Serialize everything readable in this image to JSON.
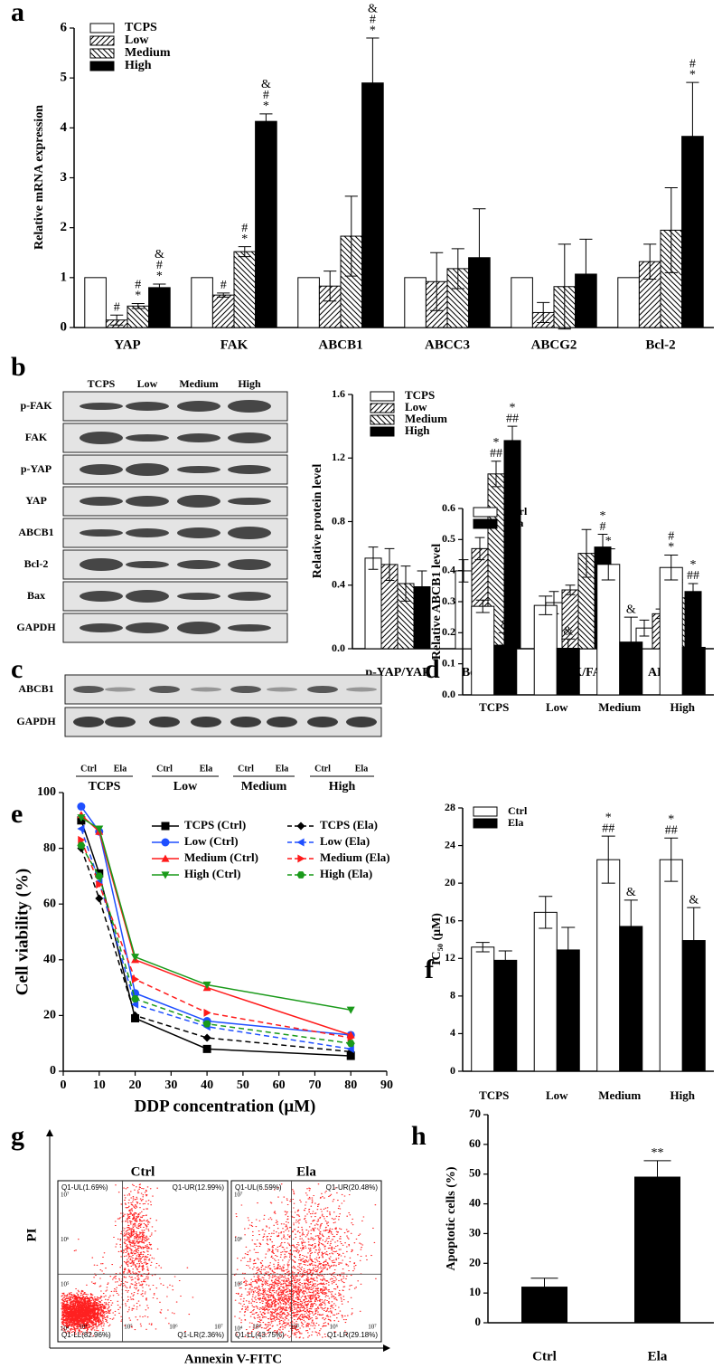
{
  "chart_data": [
    {
      "type": "bar",
      "panel": "a",
      "ylabel": "Relative mRNA expression",
      "categories": [
        "YAP",
        "FAK",
        "ABCB1",
        "ABCC3",
        "ABCG2",
        "Bcl-2"
      ],
      "series": [
        {
          "name": "TCPS",
          "color": "#ffffff",
          "pattern": "none",
          "values": [
            1,
            1,
            1,
            1,
            1,
            1
          ],
          "errors": [
            0,
            0,
            0,
            0,
            0,
            0
          ],
          "significance": [
            null,
            null,
            null,
            null,
            null,
            null
          ]
        },
        {
          "name": "Low",
          "color": "#ffffff",
          "pattern": "forward",
          "values": [
            0.15,
            0.65,
            0.83,
            0.92,
            0.3,
            1.32
          ],
          "errors": [
            0.1,
            0.04,
            0.3,
            0.58,
            0.2,
            0.35
          ],
          "significance": [
            [
              "#"
            ],
            [
              "#"
            ],
            null,
            null,
            null,
            null
          ]
        },
        {
          "name": "Medium",
          "color": "#ffffff",
          "pattern": "backward",
          "values": [
            0.43,
            1.52,
            1.83,
            1.18,
            0.82,
            1.95
          ],
          "errors": [
            0.05,
            0.1,
            0.8,
            0.4,
            0.85,
            0.85
          ],
          "significance": [
            [
              "#",
              "*"
            ],
            [
              "#",
              "*"
            ],
            null,
            null,
            null,
            null
          ]
        },
        {
          "name": "High",
          "color": "#000000",
          "pattern": "none",
          "values": [
            0.8,
            4.13,
            4.9,
            1.4,
            1.07,
            3.83
          ],
          "errors": [
            0.07,
            0.15,
            0.9,
            0.98,
            0.7,
            1.08
          ],
          "significance": [
            [
              "&",
              "#",
              "*"
            ],
            [
              "&",
              "#",
              "*"
            ],
            [
              "&",
              "#",
              "*"
            ],
            null,
            null,
            [
              "#",
              "*"
            ]
          ]
        }
      ],
      "ylim": [
        0,
        6
      ],
      "yticks": [
        0,
        1,
        2,
        3,
        4,
        5,
        6
      ],
      "legend": "upper left"
    },
    {
      "type": "bar",
      "ylabel": "Relative protein level",
      "categories": [
        "p-YAP/YAP",
        "Bcl-2/Bax",
        "p-FAK/FAK",
        "ABCB1"
      ],
      "series": [
        {
          "name": "TCPS",
          "color": "#ffffff",
          "pattern": "none",
          "values": [
            0.57,
            0.49,
            0.29,
            0.13
          ],
          "errors": [
            0.07,
            0.07,
            0.07,
            0.05
          ],
          "significance": [
            null,
            null,
            null,
            null
          ]
        },
        {
          "name": "Low",
          "color": "#ffffff",
          "pattern": "forward",
          "values": [
            0.53,
            0.63,
            0.37,
            0.22
          ],
          "errors": [
            0.1,
            0.07,
            0.03,
            0.03
          ],
          "significance": [
            null,
            null,
            null,
            null
          ]
        },
        {
          "name": "Medium",
          "color": "#ffffff",
          "pattern": "backward",
          "values": [
            0.41,
            1.1,
            0.6,
            0.32
          ],
          "errors": [
            0.11,
            0.08,
            0.15,
            0.05
          ],
          "significance": [
            null,
            [
              "*",
              "##"
            ],
            null,
            [
              "##"
            ]
          ]
        },
        {
          "name": "High",
          "color": "#000000",
          "pattern": "none",
          "values": [
            0.39,
            1.31,
            0.64,
            0.36
          ],
          "errors": [
            0.1,
            0.09,
            0.08,
            0.05
          ],
          "significance": [
            null,
            [
              "*",
              "##"
            ],
            [
              "*",
              "#"
            ],
            [
              "*",
              "##"
            ]
          ]
        }
      ],
      "ylim": [
        0,
        1.6
      ],
      "yticks": [
        {
          "value": 0,
          "label": "0.0"
        },
        0.4,
        0.8,
        1.2,
        1.6
      ],
      "legend": "upper left"
    },
    {
      "type": "bar",
      "panel": "d",
      "ylabel": "Relative ABCB1 level",
      "categories": [
        "TCPS",
        "Low",
        "Medium",
        "High"
      ],
      "series": [
        {
          "name": "Ctrl",
          "color": "#ffffff",
          "pattern": "none",
          "values": [
            0.285,
            0.288,
            0.42,
            0.41
          ],
          "errors": [
            0.02,
            0.03,
            0.05,
            0.04
          ],
          "significance": [
            null,
            null,
            [
              "*"
            ],
            [
              "#",
              "*"
            ]
          ]
        },
        {
          "name": "Ela",
          "color": "#000000",
          "pattern": "none",
          "values": [
            0.16,
            0.15,
            0.17,
            0.153
          ],
          "errors": [
            0.04,
            0.03,
            0.08,
            0.085
          ],
          "significance": [
            [
              "&"
            ],
            [
              "&"
            ],
            [
              "&"
            ],
            [
              "&"
            ]
          ]
        }
      ],
      "ylim": [
        0,
        0.6
      ],
      "yticks": [
        {
          "value": 0,
          "label": "0.0"
        },
        0.1,
        0.2,
        0.3,
        0.4,
        0.5,
        0.6
      ],
      "legend": "upper left"
    },
    {
      "type": "line",
      "panel": "e",
      "ylabel": "Cell viability (%)",
      "xlabel": "DDP concentration (μM)",
      "x": [
        5,
        10,
        20,
        40,
        80
      ],
      "series": [
        {
          "name": "TCPS (Ctrl)",
          "color": "#000000",
          "dashed": false,
          "marker": "square",
          "values": [
            90,
            71,
            19,
            8,
            5.5
          ]
        },
        {
          "name": "Low (Ctrl)",
          "color": "#1f4fff",
          "dashed": false,
          "marker": "circle",
          "values": [
            95,
            86,
            28,
            18,
            13
          ]
        },
        {
          "name": "Medium (Ctrl)",
          "color": "#ff1a1a",
          "dashed": false,
          "marker": "triangle-up",
          "values": [
            92,
            86,
            40,
            30,
            13
          ]
        },
        {
          "name": "High (Ctrl)",
          "color": "#1a9a1a",
          "dashed": false,
          "marker": "triangle-down",
          "values": [
            91,
            87,
            41,
            31,
            22
          ]
        },
        {
          "name": "TCPS (Ela)",
          "color": "#000000",
          "dashed": true,
          "marker": "diamond",
          "values": [
            80,
            62,
            20,
            12,
            7
          ]
        },
        {
          "name": "Low (Ela)",
          "color": "#1f4fff",
          "dashed": true,
          "marker": "triangle-left",
          "values": [
            87,
            68,
            24,
            16,
            8
          ]
        },
        {
          "name": "Medium (Ela)",
          "color": "#ff1a1a",
          "dashed": true,
          "marker": "triangle-right",
          "values": [
            83,
            67,
            33,
            21,
            12
          ]
        },
        {
          "name": "High (Ela)",
          "color": "#1a9a1a",
          "dashed": true,
          "marker": "hexagon",
          "values": [
            81,
            70,
            26,
            17,
            10
          ]
        }
      ],
      "xlim": [
        0,
        90
      ],
      "xticks": [
        0,
        10,
        20,
        30,
        40,
        50,
        60,
        70,
        80,
        90
      ],
      "ylim": [
        0,
        100
      ],
      "yticks": [
        0,
        20,
        40,
        60,
        80,
        100
      ]
    },
    {
      "type": "bar",
      "panel": "f",
      "ylabel": "IC₅₀ (μM)",
      "categories": [
        "TCPS",
        "Low",
        "Medium",
        "High"
      ],
      "series": [
        {
          "name": "Ctrl",
          "color": "#ffffff",
          "pattern": "none",
          "values": [
            13.2,
            16.9,
            22.5,
            22.5
          ],
          "errors": [
            0.5,
            1.7,
            2.5,
            2.3
          ],
          "significance": [
            null,
            null,
            [
              "*",
              "##"
            ],
            [
              "*",
              "##"
            ]
          ]
        },
        {
          "name": "Ela",
          "color": "#000000",
          "pattern": "none",
          "values": [
            11.8,
            12.9,
            15.4,
            13.9
          ],
          "errors": [
            1,
            2.4,
            2.8,
            3.5
          ],
          "significance": [
            null,
            null,
            [
              "&"
            ],
            [
              "&"
            ]
          ]
        }
      ],
      "ylim": [
        0,
        28
      ],
      "yticks": [
        0,
        4,
        8,
        12,
        16,
        20,
        24,
        28
      ],
      "legend": "upper left"
    },
    {
      "type": "bar",
      "panel": "h",
      "ylabel": "Apoptotic cells (%)",
      "categories": [
        "Ctrl",
        "Ela"
      ],
      "values": [
        12,
        49
      ],
      "errors": [
        3,
        5.5
      ],
      "significance": [
        null,
        [
          "**"
        ]
      ],
      "color": "#000000",
      "ylim": [
        0,
        70
      ],
      "yticks": [
        0,
        10,
        20,
        30,
        40,
        50,
        60,
        70
      ]
    }
  ],
  "blots": [
    {
      "panel": "b",
      "lanes": [
        "TCPS",
        "Low",
        "Medium",
        "High"
      ],
      "rows": [
        "p-FAK",
        "FAK",
        "p-YAP",
        "YAP",
        "ABCB1",
        "Bcl-2",
        "Bax",
        "GAPDH"
      ]
    },
    {
      "panel": "c",
      "lanes": [
        "Ctrl",
        "Ela",
        "Ctrl",
        "Ela",
        "Ctrl",
        "Ela",
        "Ctrl",
        "Ela"
      ],
      "groups": [
        "TCPS",
        "Low",
        "Medium",
        "High"
      ],
      "rows": [
        "ABCB1",
        "GAPDH"
      ]
    }
  ],
  "flow": {
    "panel": "g",
    "ylabel": "PI",
    "xlabel": "Annexin V-FITC",
    "ticks": [
      "10⁴",
      "10⁵",
      "10⁶",
      "10⁷"
    ],
    "plots": [
      {
        "title": "Ctrl",
        "quadrants": [
          "Q1-UL(1.69%)",
          "Q1-UR(12.99%)",
          "Q1-LL(82.96%)",
          "Q1-LR(2.36%)"
        ]
      },
      {
        "title": "Ela",
        "quadrants": [
          "Q1-UL(6.59%)",
          "Q1-UR(20.48%)",
          "Q1-LL(43.75%)",
          "Q1-LR(29.18%)"
        ]
      }
    ]
  }
}
